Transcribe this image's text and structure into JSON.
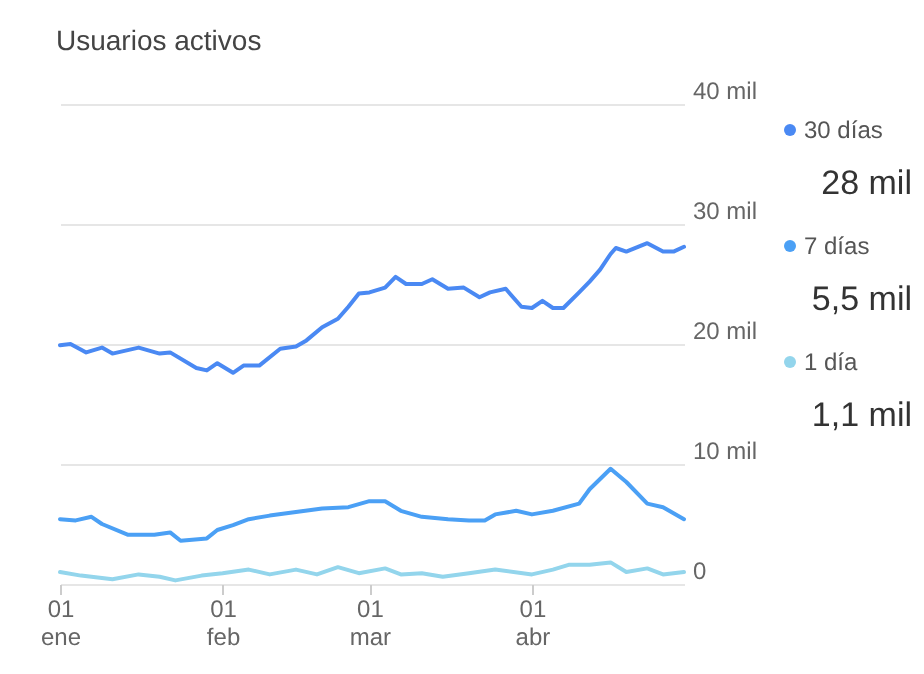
{
  "chart_data": {
    "type": "line",
    "title": "Usuarios activos",
    "series": [
      {
        "name": "30 días",
        "color": "#4a89f3",
        "x": [
          "--01-01",
          "--01-03",
          "--01-06",
          "--01-09",
          "--01-11",
          "--01-16",
          "--01-20",
          "--01-22",
          "--01-27",
          "--01-29",
          "--01-31",
          "--02-03",
          "--02-05",
          "--02-08",
          "--02-12",
          "--02-15",
          "--02-17",
          "--02-20",
          "--02-23",
          "--02-25",
          "--02-27",
          "--03-01",
          "--03-04",
          "--03-06",
          "--03-08",
          "--03-11",
          "--03-13",
          "--03-16",
          "--03-19",
          "--03-22",
          "--03-24",
          "--03-27",
          "--03-30",
          "--04-01",
          "--04-03",
          "--04-05",
          "--04-07",
          "--04-10",
          "--04-12",
          "--04-14",
          "--04-16",
          "--04-17",
          "--04-19",
          "--04-23",
          "--04-26",
          "--04-28",
          "--04-30"
        ],
        "values": [
          19.9,
          20.0,
          19.3,
          19.7,
          19.2,
          19.7,
          19.2,
          19.3,
          18.0,
          17.8,
          18.4,
          17.6,
          18.2,
          18.2,
          19.6,
          19.8,
          20.3,
          21.4,
          22.1,
          23.1,
          24.2,
          24.3,
          24.7,
          25.6,
          25.0,
          25.0,
          25.4,
          24.6,
          24.7,
          23.9,
          24.3,
          24.6,
          23.1,
          23.0,
          23.6,
          23.0,
          23.0,
          24.3,
          25.2,
          26.2,
          27.5,
          28.0,
          27.7,
          28.4,
          27.7,
          27.7,
          28.1
        ]
      },
      {
        "name": "7 días",
        "color": "#4ba0f5",
        "x": [
          "--01-01",
          "--01-04",
          "--01-07",
          "--01-09",
          "--01-14",
          "--01-19",
          "--01-22",
          "--01-24",
          "--01-29",
          "--01-31",
          "--02-03",
          "--02-06",
          "--02-10",
          "--02-15",
          "--02-20",
          "--02-25",
          "--03-01",
          "--03-04",
          "--03-07",
          "--03-11",
          "--03-16",
          "--03-20",
          "--03-23",
          "--03-25",
          "--03-29",
          "--04-01",
          "--04-05",
          "--04-10",
          "--04-12",
          "--04-16",
          "--04-19",
          "--04-23",
          "--04-26",
          "--04-30"
        ],
        "values": [
          5.4,
          5.3,
          5.6,
          5.0,
          4.1,
          4.1,
          4.3,
          3.6,
          3.8,
          4.5,
          4.9,
          5.4,
          5.7,
          6.0,
          6.3,
          6.4,
          6.9,
          6.9,
          6.1,
          5.6,
          5.4,
          5.3,
          5.3,
          5.8,
          6.1,
          5.8,
          6.1,
          6.7,
          7.9,
          9.6,
          8.5,
          6.7,
          6.4,
          5.4
        ]
      },
      {
        "name": "1 día",
        "color": "#93d5ec",
        "x": [
          "--01-01",
          "--01-05",
          "--01-11",
          "--01-16",
          "--01-20",
          "--01-23",
          "--01-28",
          "--02-01",
          "--02-06",
          "--02-10",
          "--02-15",
          "--02-19",
          "--02-23",
          "--02-27",
          "--03-04",
          "--03-07",
          "--03-11",
          "--03-15",
          "--03-20",
          "--03-25",
          "--04-01",
          "--04-05",
          "--04-08",
          "--04-12",
          "--04-16",
          "--04-19",
          "--04-23",
          "--04-26",
          "--04-30"
        ],
        "values": [
          1.0,
          0.7,
          0.4,
          0.8,
          0.6,
          0.3,
          0.7,
          0.9,
          1.2,
          0.8,
          1.2,
          0.8,
          1.4,
          0.9,
          1.3,
          0.8,
          0.9,
          0.6,
          0.9,
          1.2,
          0.8,
          1.2,
          1.6,
          1.6,
          1.8,
          1.0,
          1.3,
          0.8,
          1.0
        ]
      }
    ],
    "annotations": [
      "28 mil",
      "5,5 mil",
      "1,1 mil"
    ],
    "xlim": [
      "--01-01",
      "--04-30"
    ],
    "xticks": [
      {
        "value": "--01-01",
        "label": "01 ene"
      },
      {
        "value": "--02-01",
        "label": "01 feb"
      },
      {
        "value": "--03-01",
        "label": "01 mar"
      },
      {
        "value": "--04-01",
        "label": "01 abr"
      }
    ],
    "ylim": [
      0,
      40
    ],
    "yticks": [
      0,
      {
        "value": 10,
        "label": "10 mil"
      },
      {
        "value": 20,
        "label": "20 mil"
      },
      {
        "value": 30,
        "label": "30 mil"
      },
      {
        "value": 40,
        "label": "40 mil"
      }
    ],
    "grid": "y",
    "legend": "right",
    "line_style": "solid",
    "marker": "none"
  }
}
